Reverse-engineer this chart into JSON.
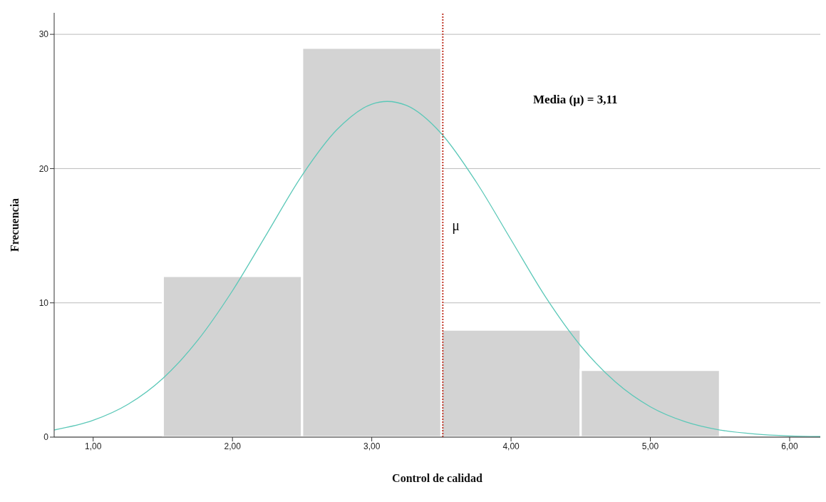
{
  "chart_data": {
    "type": "histogram",
    "xlabel": "Control de calidad",
    "ylabel": "Frecuencia",
    "bins": [
      1.5,
      2.5,
      3.5,
      4.5,
      5.5
    ],
    "series": [
      {
        "color": "#d3d3d3",
        "values": [
          12,
          29,
          8,
          5
        ]
      },
      {
        "type": "line",
        "color": "#5bc8b8",
        "x": [
          0.72,
          1.0,
          1.25,
          1.5,
          1.75,
          2.0,
          2.25,
          2.5,
          2.75,
          3.0,
          3.11,
          3.25,
          3.5,
          3.75,
          4.0,
          4.25,
          4.5,
          4.75,
          5.0,
          5.25,
          5.5,
          5.75,
          6.0,
          6.22
        ],
        "values": [
          0.53,
          1.25,
          2.44,
          4.37,
          7.2,
          10.9,
          15.2,
          19.5,
          22.9,
          24.8,
          25,
          24.7,
          22.6,
          19.0,
          14.7,
          10.4,
          6.8,
          4.1,
          2.26,
          1.15,
          0.53,
          0.23,
          0.09,
          0.04
        ]
      }
    ],
    "xlim": [
      0.72,
      6.22
    ],
    "xticks": [
      {
        "value": 1,
        "label": "1,00"
      },
      {
        "value": 2,
        "label": "2,00"
      },
      {
        "value": 3,
        "label": "3,00"
      },
      {
        "value": 4,
        "label": "4,00"
      },
      {
        "value": 5,
        "label": "5,00"
      },
      {
        "value": 6,
        "label": "6,00"
      }
    ],
    "ylim": [
      0,
      31.6
    ],
    "yticks": [
      0,
      10,
      20,
      30
    ],
    "grid": "y",
    "marker": "none",
    "line_style": "solid",
    "ref_lines": [
      {
        "axis": "x",
        "value": 3.51,
        "label": "μ",
        "color": "#c0392b",
        "line_style": "dotted"
      }
    ],
    "annotations": [
      "Media (μ) = 3,11"
    ]
  }
}
